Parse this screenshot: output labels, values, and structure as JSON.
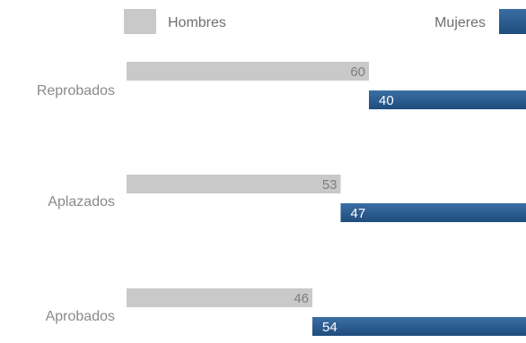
{
  "chart_data": {
    "type": "bar",
    "orientation": "horizontal",
    "stacked": true,
    "categories": [
      "Reprobados",
      "Aplazados",
      "Aprobados"
    ],
    "series": [
      {
        "name": "Hombres",
        "values": [
          60,
          53,
          46
        ],
        "color": "#c9c9c9"
      },
      {
        "name": "Mujeres",
        "values": [
          40,
          47,
          54
        ],
        "color": "#2a5c8e"
      }
    ],
    "title": "",
    "xlabel": "",
    "ylabel": "",
    "xlim": [
      0,
      100
    ],
    "legend": "top",
    "grid": false
  }
}
